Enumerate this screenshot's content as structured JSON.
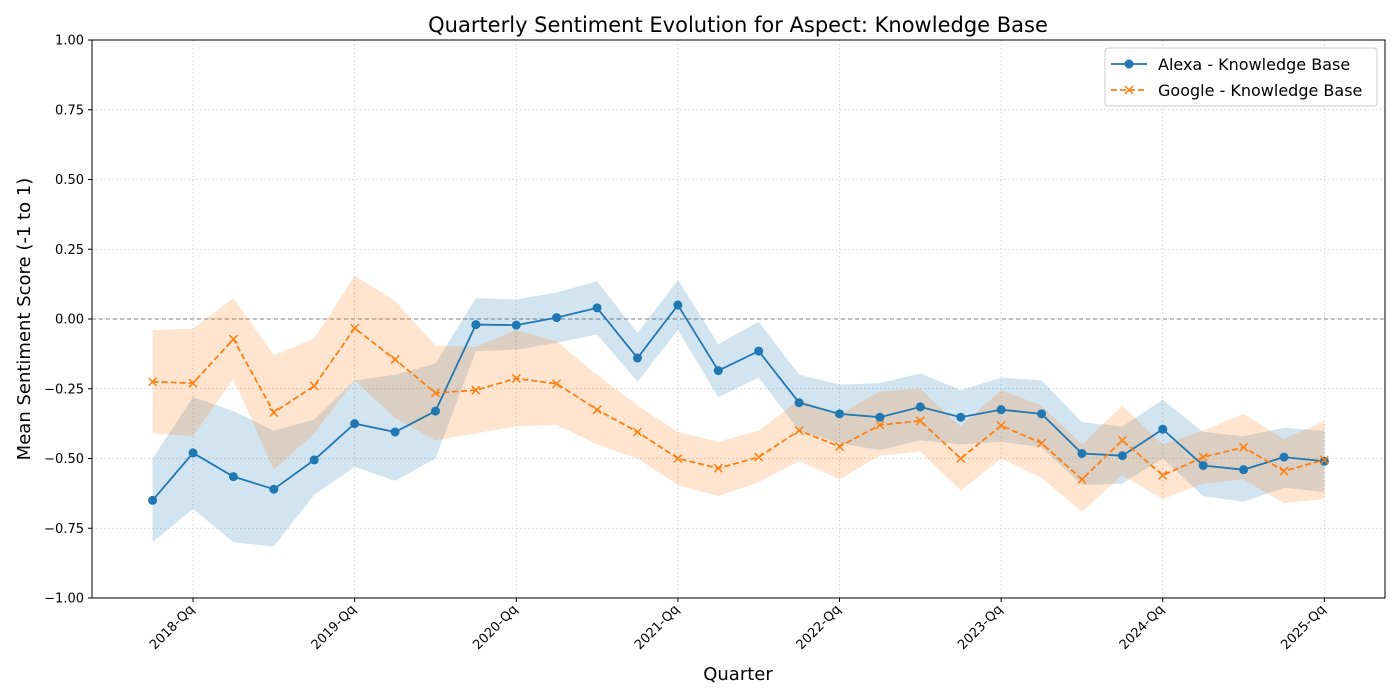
{
  "chart_data": {
    "type": "line",
    "title": "Quarterly Sentiment Evolution for Aspect: Knowledge Base",
    "xlabel": "Quarter",
    "ylabel": "Mean Sentiment Score (-1 to 1)",
    "ylim": [
      -1.0,
      1.0
    ],
    "yticks": [
      -1.0,
      -0.75,
      -0.5,
      -0.25,
      0.0,
      0.25,
      0.5,
      0.75,
      1.0
    ],
    "ytick_labels": [
      "−1.00",
      "−0.75",
      "−0.50",
      "−0.25",
      "0.00",
      "0.25",
      "0.50",
      "0.75",
      "1.00"
    ],
    "x_tick_labels": [
      "2018-Qq",
      "2019-Qq",
      "2020-Qq",
      "2021-Qq",
      "2022-Qq",
      "2023-Qq",
      "2024-Qq",
      "2025-Qq"
    ],
    "x_tick_positions": [
      1,
      5,
      9,
      13,
      17,
      21,
      25,
      29
    ],
    "xlim": [
      -1.5,
      30.5
    ],
    "grid": true,
    "reference_line": 0.0,
    "legend_position": "top-right",
    "series": [
      {
        "name": "Alexa - Knowledge Base",
        "color": "#1f77b4",
        "marker": "circle",
        "linestyle": "solid",
        "values": [
          -0.65,
          -0.48,
          -0.565,
          -0.61,
          -0.505,
          -0.375,
          -0.405,
          -0.33,
          -0.02,
          -0.022,
          0.005,
          0.04,
          -0.14,
          0.05,
          -0.185,
          -0.115,
          -0.3,
          -0.34,
          -0.352,
          -0.315,
          -0.352,
          -0.325,
          -0.34,
          -0.482,
          -0.49,
          -0.395,
          -0.525,
          -0.54,
          -0.495,
          -0.51
        ],
        "upper": [
          -0.5,
          -0.28,
          -0.33,
          -0.4,
          -0.36,
          -0.22,
          -0.2,
          -0.16,
          0.075,
          0.07,
          0.095,
          0.135,
          -0.05,
          0.14,
          -0.09,
          -0.01,
          -0.2,
          -0.235,
          -0.23,
          -0.195,
          -0.255,
          -0.21,
          -0.22,
          -0.37,
          -0.385,
          -0.29,
          -0.405,
          -0.42,
          -0.39,
          -0.4
        ],
        "lower": [
          -0.8,
          -0.68,
          -0.8,
          -0.815,
          -0.63,
          -0.53,
          -0.58,
          -0.5,
          -0.115,
          -0.11,
          -0.085,
          -0.055,
          -0.225,
          -0.04,
          -0.28,
          -0.21,
          -0.4,
          -0.445,
          -0.47,
          -0.435,
          -0.45,
          -0.44,
          -0.46,
          -0.595,
          -0.59,
          -0.5,
          -0.635,
          -0.655,
          -0.605,
          -0.62
        ]
      },
      {
        "name": "Google - Knowledge Base",
        "color": "#ff7f0e",
        "marker": "x",
        "linestyle": "dashed",
        "values": [
          -0.225,
          -0.23,
          -0.072,
          -0.335,
          -0.24,
          -0.033,
          -0.145,
          -0.265,
          -0.255,
          -0.213,
          -0.232,
          -0.325,
          -0.405,
          -0.5,
          -0.535,
          -0.495,
          -0.4,
          -0.457,
          -0.38,
          -0.365,
          -0.5,
          -0.382,
          -0.445,
          -0.575,
          -0.435,
          -0.56,
          -0.495,
          -0.46,
          -0.545,
          -0.505
        ],
        "upper": [
          -0.04,
          -0.035,
          0.075,
          -0.13,
          -0.07,
          0.155,
          0.065,
          -0.095,
          -0.1,
          -0.04,
          -0.08,
          -0.2,
          -0.31,
          -0.405,
          -0.44,
          -0.4,
          -0.29,
          -0.34,
          -0.26,
          -0.25,
          -0.385,
          -0.255,
          -0.31,
          -0.45,
          -0.31,
          -0.45,
          -0.4,
          -0.34,
          -0.43,
          -0.365
        ],
        "lower": [
          -0.41,
          -0.42,
          -0.215,
          -0.54,
          -0.41,
          -0.22,
          -0.355,
          -0.435,
          -0.41,
          -0.385,
          -0.38,
          -0.45,
          -0.5,
          -0.595,
          -0.635,
          -0.585,
          -0.51,
          -0.575,
          -0.49,
          -0.475,
          -0.615,
          -0.5,
          -0.57,
          -0.69,
          -0.56,
          -0.645,
          -0.59,
          -0.575,
          -0.66,
          -0.645
        ]
      }
    ]
  }
}
